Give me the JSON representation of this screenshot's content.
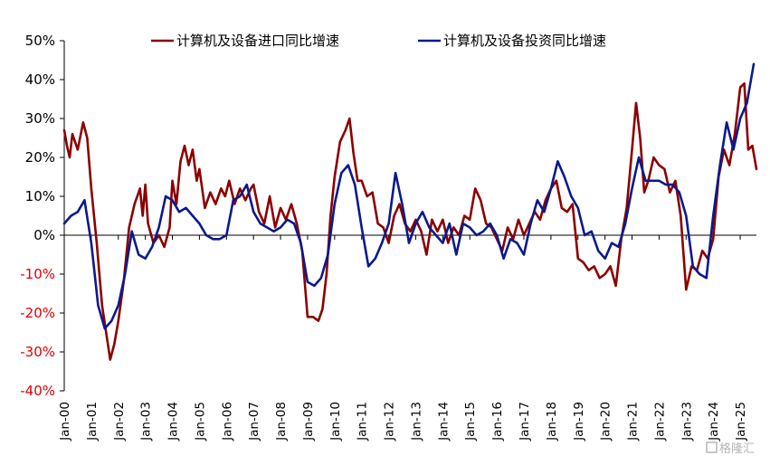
{
  "chart_data": {
    "type": "line",
    "title": "",
    "xlabel": "",
    "ylabel": "",
    "ylim": [
      -40,
      50
    ],
    "y_unit": "%",
    "y_ticks": [
      "50%",
      "40%",
      "30%",
      "20%",
      "10%",
      "0%",
      "-10%",
      "-20%",
      "-30%",
      "-40%"
    ],
    "x_ticks": [
      "Jan-00",
      "Jan-01",
      "Jan-02",
      "Jan-03",
      "Jan-04",
      "Jan-05",
      "Jan-06",
      "Jan-07",
      "Jan-08",
      "Jan-09",
      "Jan-10",
      "Jan-11",
      "Jan-12",
      "Jan-13",
      "Jan-14",
      "Jan-15",
      "Jan-16",
      "Jan-17",
      "Jan-18",
      "Jan-19",
      "Jan-20",
      "Jan-21",
      "Jan-22",
      "Jan-23",
      "Jan-24",
      "Jan-25"
    ],
    "x_start": "Jan-00",
    "x_end": "Jul-25",
    "legend_position": "top",
    "grid": false,
    "series": [
      {
        "name": "计算机及设备进口同比增速",
        "color": "#8b0000",
        "points": [
          [
            2000.0,
            27
          ],
          [
            2000.1,
            23
          ],
          [
            2000.2,
            20
          ],
          [
            2000.3,
            26
          ],
          [
            2000.5,
            22
          ],
          [
            2000.7,
            29
          ],
          [
            2000.85,
            25
          ],
          [
            2001.0,
            12
          ],
          [
            2001.2,
            -2
          ],
          [
            2001.4,
            -18
          ],
          [
            2001.55,
            -25
          ],
          [
            2001.7,
            -32
          ],
          [
            2001.85,
            -28
          ],
          [
            2002.0,
            -22
          ],
          [
            2002.2,
            -12
          ],
          [
            2002.4,
            2
          ],
          [
            2002.6,
            8
          ],
          [
            2002.8,
            12
          ],
          [
            2002.9,
            5
          ],
          [
            2003.0,
            13
          ],
          [
            2003.1,
            3
          ],
          [
            2003.3,
            -2
          ],
          [
            2003.5,
            0
          ],
          [
            2003.7,
            -3
          ],
          [
            2003.9,
            2
          ],
          [
            2004.0,
            14
          ],
          [
            2004.15,
            8
          ],
          [
            2004.3,
            19
          ],
          [
            2004.45,
            23
          ],
          [
            2004.6,
            18
          ],
          [
            2004.75,
            22
          ],
          [
            2004.9,
            14
          ],
          [
            2005.0,
            17
          ],
          [
            2005.2,
            7
          ],
          [
            2005.4,
            11
          ],
          [
            2005.6,
            8
          ],
          [
            2005.8,
            12
          ],
          [
            2005.95,
            10
          ],
          [
            2006.1,
            14
          ],
          [
            2006.3,
            8
          ],
          [
            2006.5,
            12
          ],
          [
            2006.7,
            9
          ],
          [
            2006.9,
            12
          ],
          [
            2007.0,
            13
          ],
          [
            2007.2,
            6
          ],
          [
            2007.4,
            3
          ],
          [
            2007.6,
            10
          ],
          [
            2007.8,
            2
          ],
          [
            2008.0,
            7
          ],
          [
            2008.2,
            4
          ],
          [
            2008.4,
            8
          ],
          [
            2008.6,
            3
          ],
          [
            2008.8,
            -4
          ],
          [
            2009.0,
            -21
          ],
          [
            2009.2,
            -21
          ],
          [
            2009.4,
            -22
          ],
          [
            2009.55,
            -19
          ],
          [
            2009.7,
            -10
          ],
          [
            2009.85,
            5
          ],
          [
            2010.0,
            15
          ],
          [
            2010.2,
            24
          ],
          [
            2010.4,
            27
          ],
          [
            2010.55,
            30
          ],
          [
            2010.7,
            21
          ],
          [
            2010.85,
            14
          ],
          [
            2011.0,
            14
          ],
          [
            2011.2,
            10
          ],
          [
            2011.4,
            11
          ],
          [
            2011.6,
            3
          ],
          [
            2011.8,
            2
          ],
          [
            2012.0,
            -2
          ],
          [
            2012.2,
            5
          ],
          [
            2012.4,
            8
          ],
          [
            2012.6,
            3
          ],
          [
            2012.8,
            1
          ],
          [
            2013.0,
            4
          ],
          [
            2013.2,
            1
          ],
          [
            2013.4,
            -5
          ],
          [
            2013.6,
            4
          ],
          [
            2013.8,
            1
          ],
          [
            2014.0,
            4
          ],
          [
            2014.2,
            -2
          ],
          [
            2014.4,
            2
          ],
          [
            2014.6,
            0
          ],
          [
            2014.8,
            5
          ],
          [
            2015.0,
            4
          ],
          [
            2015.2,
            12
          ],
          [
            2015.4,
            9
          ],
          [
            2015.6,
            3
          ],
          [
            2015.8,
            2
          ],
          [
            2016.0,
            -1
          ],
          [
            2016.2,
            -4
          ],
          [
            2016.4,
            2
          ],
          [
            2016.6,
            -1
          ],
          [
            2016.8,
            4
          ],
          [
            2017.0,
            0
          ],
          [
            2017.2,
            3
          ],
          [
            2017.4,
            6
          ],
          [
            2017.6,
            4
          ],
          [
            2017.8,
            9
          ],
          [
            2018.0,
            12
          ],
          [
            2018.2,
            14
          ],
          [
            2018.4,
            7
          ],
          [
            2018.6,
            6
          ],
          [
            2018.8,
            8
          ],
          [
            2019.0,
            -6
          ],
          [
            2019.2,
            -7
          ],
          [
            2019.4,
            -9
          ],
          [
            2019.6,
            -8
          ],
          [
            2019.8,
            -11
          ],
          [
            2020.0,
            -10
          ],
          [
            2020.2,
            -8
          ],
          [
            2020.4,
            -13
          ],
          [
            2020.6,
            -1
          ],
          [
            2020.8,
            7
          ],
          [
            2021.0,
            22
          ],
          [
            2021.15,
            34
          ],
          [
            2021.3,
            25
          ],
          [
            2021.45,
            11
          ],
          [
            2021.6,
            14
          ],
          [
            2021.8,
            20
          ],
          [
            2022.0,
            18
          ],
          [
            2022.2,
            17
          ],
          [
            2022.4,
            11
          ],
          [
            2022.6,
            14
          ],
          [
            2022.8,
            5
          ],
          [
            2023.0,
            -14
          ],
          [
            2023.2,
            -8
          ],
          [
            2023.4,
            -9
          ],
          [
            2023.6,
            -4
          ],
          [
            2023.8,
            -6
          ],
          [
            2024.0,
            -1
          ],
          [
            2024.2,
            15
          ],
          [
            2024.4,
            22
          ],
          [
            2024.6,
            18
          ],
          [
            2024.8,
            26
          ],
          [
            2025.0,
            38
          ],
          [
            2025.15,
            39
          ],
          [
            2025.3,
            22
          ],
          [
            2025.45,
            23
          ],
          [
            2025.6,
            17
          ]
        ]
      },
      {
        "name": "计算机及设备投资同比增速",
        "color": "#0a1a8c",
        "points": [
          [
            2000.0,
            3
          ],
          [
            2000.25,
            5
          ],
          [
            2000.5,
            6
          ],
          [
            2000.75,
            9
          ],
          [
            2001.0,
            -2
          ],
          [
            2001.25,
            -18
          ],
          [
            2001.5,
            -24
          ],
          [
            2001.75,
            -22
          ],
          [
            2002.0,
            -18
          ],
          [
            2002.25,
            -10
          ],
          [
            2002.5,
            1
          ],
          [
            2002.75,
            -5
          ],
          [
            2003.0,
            -6
          ],
          [
            2003.25,
            -3
          ],
          [
            2003.5,
            2
          ],
          [
            2003.75,
            10
          ],
          [
            2004.0,
            9
          ],
          [
            2004.25,
            6
          ],
          [
            2004.5,
            7
          ],
          [
            2004.75,
            5
          ],
          [
            2005.0,
            3
          ],
          [
            2005.25,
            0
          ],
          [
            2005.5,
            -1
          ],
          [
            2005.75,
            -1
          ],
          [
            2006.0,
            0
          ],
          [
            2006.25,
            9
          ],
          [
            2006.5,
            10
          ],
          [
            2006.75,
            13
          ],
          [
            2007.0,
            6
          ],
          [
            2007.25,
            3
          ],
          [
            2007.5,
            2
          ],
          [
            2007.75,
            1
          ],
          [
            2008.0,
            2
          ],
          [
            2008.25,
            4
          ],
          [
            2008.5,
            3
          ],
          [
            2008.75,
            -2
          ],
          [
            2009.0,
            -12
          ],
          [
            2009.25,
            -13
          ],
          [
            2009.5,
            -11
          ],
          [
            2009.75,
            -5
          ],
          [
            2010.0,
            8
          ],
          [
            2010.25,
            16
          ],
          [
            2010.5,
            18
          ],
          [
            2010.75,
            13
          ],
          [
            2011.0,
            2
          ],
          [
            2011.25,
            -8
          ],
          [
            2011.5,
            -6
          ],
          [
            2011.75,
            -2
          ],
          [
            2012.0,
            3
          ],
          [
            2012.25,
            16
          ],
          [
            2012.5,
            8
          ],
          [
            2012.75,
            -2
          ],
          [
            2013.0,
            3
          ],
          [
            2013.25,
            6
          ],
          [
            2013.5,
            2
          ],
          [
            2013.75,
            0
          ],
          [
            2014.0,
            -2
          ],
          [
            2014.25,
            3
          ],
          [
            2014.5,
            -5
          ],
          [
            2014.75,
            3
          ],
          [
            2015.0,
            2
          ],
          [
            2015.25,
            0
          ],
          [
            2015.5,
            1
          ],
          [
            2015.75,
            3
          ],
          [
            2016.0,
            0
          ],
          [
            2016.25,
            -6
          ],
          [
            2016.5,
            -1
          ],
          [
            2016.75,
            -2
          ],
          [
            2017.0,
            -5
          ],
          [
            2017.25,
            3
          ],
          [
            2017.5,
            9
          ],
          [
            2017.75,
            6
          ],
          [
            2018.0,
            12
          ],
          [
            2018.25,
            19
          ],
          [
            2018.5,
            15
          ],
          [
            2018.75,
            10
          ],
          [
            2019.0,
            7
          ],
          [
            2019.25,
            0
          ],
          [
            2019.5,
            1
          ],
          [
            2019.75,
            -4
          ],
          [
            2020.0,
            -6
          ],
          [
            2020.25,
            -2
          ],
          [
            2020.5,
            -3
          ],
          [
            2020.75,
            3
          ],
          [
            2021.0,
            12
          ],
          [
            2021.25,
            20
          ],
          [
            2021.5,
            14
          ],
          [
            2021.75,
            14
          ],
          [
            2022.0,
            14
          ],
          [
            2022.25,
            13
          ],
          [
            2022.5,
            13
          ],
          [
            2022.75,
            11
          ],
          [
            2023.0,
            5
          ],
          [
            2023.25,
            -8
          ],
          [
            2023.5,
            -10
          ],
          [
            2023.75,
            -11
          ],
          [
            2024.0,
            5
          ],
          [
            2024.25,
            18
          ],
          [
            2024.5,
            29
          ],
          [
            2024.75,
            22
          ],
          [
            2025.0,
            30
          ],
          [
            2025.25,
            34
          ],
          [
            2025.5,
            44
          ]
        ]
      }
    ]
  },
  "watermark": {
    "text": "格隆汇",
    "color": "#b5b5b5"
  }
}
